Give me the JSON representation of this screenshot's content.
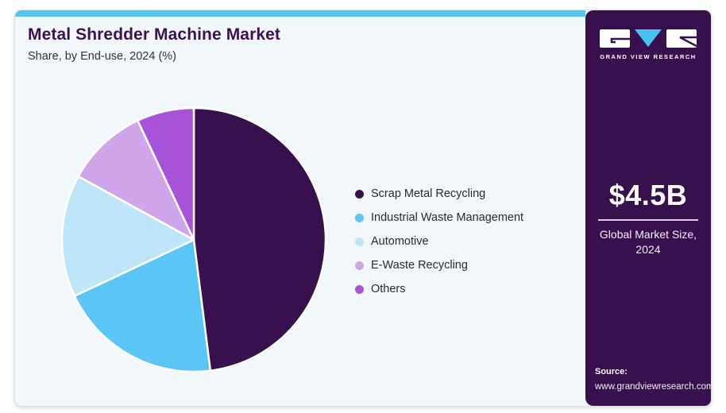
{
  "page": {
    "title": "Metal Shredder Machine Market",
    "subtitle": "Share, by End-use, 2024 (%)"
  },
  "sidebar": {
    "logo_text": "GRAND VIEW RESEARCH",
    "market_size_value": "$4.5B",
    "market_size_label_line1": "Global Market Size,",
    "market_size_label_line2": "2024",
    "source_label": "Source:",
    "source_url": "www.grandviewresearch.com"
  },
  "colors": {
    "accent_bar": "#55c6f2",
    "title_text": "#3d1152",
    "sidebar_background": "#36114e",
    "panel_background": "#f1f7fb",
    "logo_triangle": "#49c2f1"
  },
  "chart_data": {
    "type": "pie",
    "title": "Metal Shredder Machine Market Share, by End-use, 2024 (%)",
    "units": "%",
    "start_angle_deg": 0,
    "direction": "clockwise",
    "legend_position": "right",
    "segments": [
      {
        "label": "Scrap Metal Recycling",
        "value": 48,
        "color": "#36114e"
      },
      {
        "label": "Industrial Waste Management",
        "value": 20,
        "color": "#5bc6f5"
      },
      {
        "label": "Automotive",
        "value": 15,
        "color": "#bde6f9"
      },
      {
        "label": "E-Waste Recycling",
        "value": 10,
        "color": "#cfa6eb"
      },
      {
        "label": "Others",
        "value": 7,
        "color": "#a653d8"
      }
    ]
  }
}
